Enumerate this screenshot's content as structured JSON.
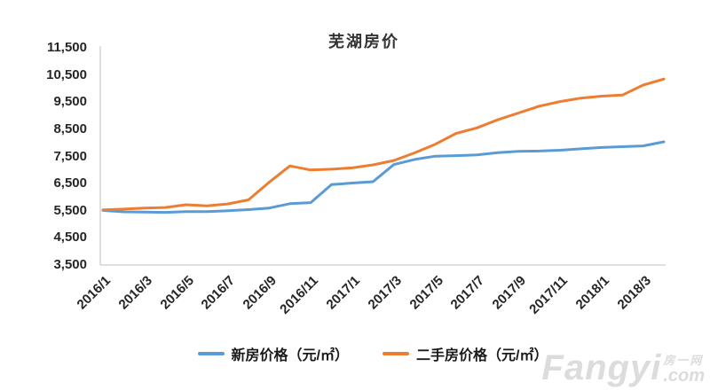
{
  "chart_data": {
    "type": "line",
    "title": "芜湖房价",
    "xlabel": "",
    "ylabel": "",
    "x": [
      "2016/1",
      "2016/2",
      "2016/3",
      "2016/4",
      "2016/5",
      "2016/6",
      "2016/7",
      "2016/8",
      "2016/9",
      "2016/10",
      "2016/11",
      "2016/12",
      "2017/1",
      "2017/2",
      "2017/3",
      "2017/4",
      "2017/5",
      "2017/6",
      "2017/7",
      "2017/8",
      "2017/9",
      "2017/10",
      "2017/11",
      "2017/12",
      "2018/1",
      "2018/2",
      "2018/3",
      "2018/4"
    ],
    "x_tick_labels": [
      "2016/1",
      "2016/3",
      "2016/5",
      "2016/7",
      "2016/9",
      "2016/11",
      "2017/1",
      "2017/3",
      "2017/5",
      "2017/7",
      "2017/9",
      "2017/11",
      "2018/1",
      "2018/3"
    ],
    "ylim": [
      3500,
      11500
    ],
    "y_tick_step": 1000,
    "y_tick_labels": [
      "3,500",
      "4,500",
      "5,500",
      "6,500",
      "7,500",
      "8,500",
      "9,500",
      "10,500",
      "11,500"
    ],
    "grid": false,
    "legend_position": "bottom",
    "axis_color": "#bfbfbf",
    "series": [
      {
        "name": "新房价格（元/㎡）",
        "color": "#5b9bd5",
        "values": [
          5510,
          5460,
          5450,
          5440,
          5470,
          5470,
          5500,
          5540,
          5600,
          5760,
          5800,
          6460,
          6520,
          6570,
          7200,
          7390,
          7510,
          7530,
          7560,
          7640,
          7690,
          7700,
          7730,
          7780,
          7830,
          7860,
          7890,
          8040
        ]
      },
      {
        "name": "二手房价格（元/㎡）",
        "color": "#ed7d31",
        "values": [
          5530,
          5560,
          5600,
          5620,
          5720,
          5680,
          5750,
          5900,
          6550,
          7150,
          7000,
          7030,
          7080,
          7190,
          7350,
          7630,
          7950,
          8350,
          8550,
          8850,
          9100,
          9350,
          9520,
          9650,
          9720,
          9760,
          10130,
          10350
        ]
      }
    ]
  },
  "watermark": {
    "brand": "Fangyi",
    "cn": "房一网",
    "tld": ".com"
  }
}
